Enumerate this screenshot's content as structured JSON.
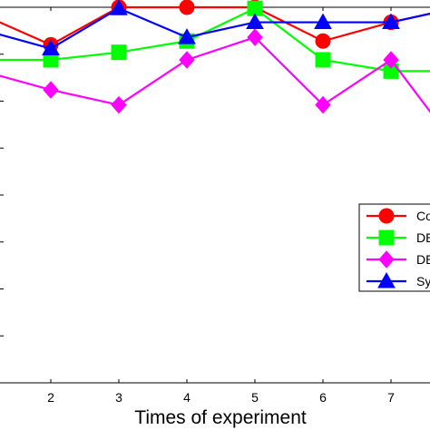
{
  "chart_data": {
    "type": "line",
    "xlabel": "Times of experiment",
    "x": [
      1,
      2,
      3,
      4,
      5,
      6,
      7,
      8
    ],
    "x_tick_labels": [
      "2",
      "3",
      "4",
      "5",
      "6",
      "7"
    ],
    "xlim": [
      1.25,
      7.38
    ],
    "ylim": [
      0,
      1
    ],
    "grid": false,
    "legend_placement": "right",
    "series": [
      {
        "name": "Co",
        "color": "#ff0000",
        "marker": "circle",
        "values": [
          0.98,
          0.9,
          1.0,
          1.0,
          1.0,
          0.91,
          0.96,
          1.0
        ]
      },
      {
        "name": "DE",
        "color": "#00ff00",
        "marker": "square",
        "values": [
          0.86,
          0.86,
          0.88,
          0.91,
          0.997,
          0.86,
          0.83,
          0.83
        ]
      },
      {
        "name": "DE",
        "color": "#ff00ff",
        "marker": "diamond",
        "values": [
          0.83,
          0.78,
          0.74,
          0.86,
          0.92,
          0.74,
          0.86,
          0.62
        ]
      },
      {
        "name": "Sy",
        "color": "#0000ff",
        "marker": "triangle",
        "values": [
          0.94,
          0.89,
          0.997,
          0.92,
          0.96,
          0.96,
          0.96,
          1.0
        ]
      }
    ]
  }
}
